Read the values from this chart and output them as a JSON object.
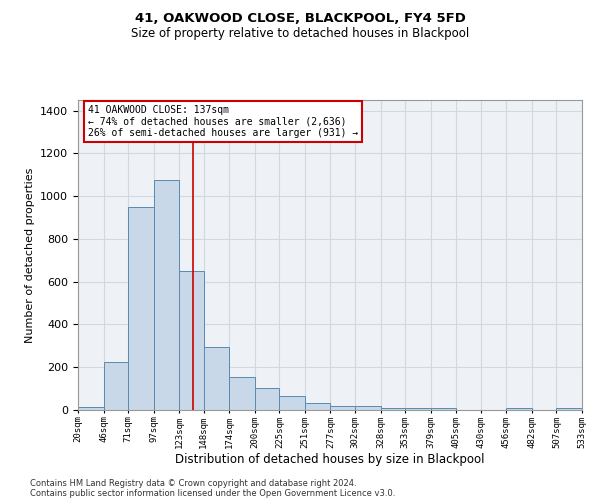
{
  "title": "41, OAKWOOD CLOSE, BLACKPOOL, FY4 5FD",
  "subtitle": "Size of property relative to detached houses in Blackpool",
  "xlabel": "Distribution of detached houses by size in Blackpool",
  "ylabel": "Number of detached properties",
  "footnote1": "Contains HM Land Registry data © Crown copyright and database right 2024.",
  "footnote2": "Contains public sector information licensed under the Open Government Licence v3.0.",
  "bar_color": "#c8d8e8",
  "bar_edge_color": "#5a8ab0",
  "grid_color": "#d0d8e0",
  "background_color": "#eef2f7",
  "annotation_box_color": "#ffffff",
  "annotation_border_color": "#cc0000",
  "red_line_color": "#cc0000",
  "property_size": 137,
  "annotation_line1": "41 OAKWOOD CLOSE: 137sqm",
  "annotation_line2": "← 74% of detached houses are smaller (2,636)",
  "annotation_line3": "26% of semi-detached houses are larger (931) →",
  "bin_edges": [
    20,
    46,
    71,
    97,
    123,
    148,
    174,
    200,
    225,
    251,
    277,
    302,
    328,
    353,
    379,
    405,
    430,
    456,
    482,
    507,
    533
  ],
  "bar_heights": [
    15,
    225,
    950,
    1075,
    650,
    295,
    155,
    105,
    65,
    35,
    20,
    20,
    10,
    10,
    10,
    0,
    0,
    10,
    0,
    10
  ],
  "ylim": [
    0,
    1450
  ],
  "yticks": [
    0,
    200,
    400,
    600,
    800,
    1000,
    1200,
    1400
  ]
}
